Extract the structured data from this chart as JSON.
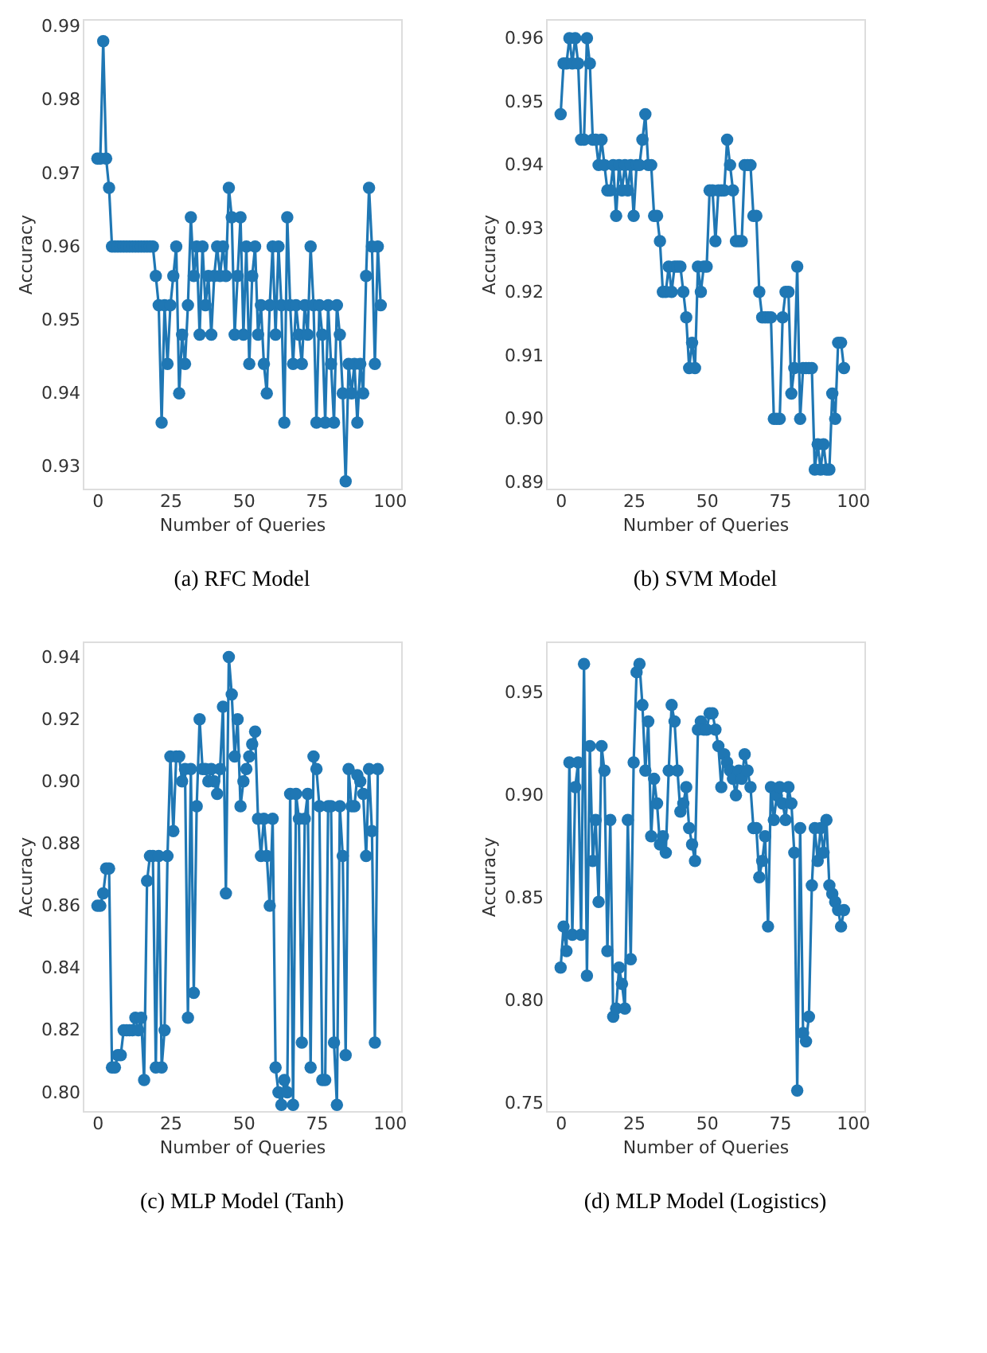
{
  "chart_data": [
    {
      "type": "line",
      "title": "(a) RFC Model",
      "xlabel": "Number of Queries",
      "ylabel": "Accuracy",
      "marker": "circle",
      "grid": false,
      "xlim": [
        -5,
        104
      ],
      "xticks": [
        0,
        25,
        50,
        75,
        100
      ],
      "ylim": [
        0.927,
        0.991
      ],
      "yticks": [
        {
          "value": 0.93,
          "label": "0.93"
        },
        {
          "value": 0.94,
          "label": "0.94"
        },
        {
          "value": 0.95,
          "label": "0.95"
        },
        {
          "value": 0.96,
          "label": "0.96"
        },
        {
          "value": 0.97,
          "label": "0.97"
        },
        {
          "value": 0.98,
          "label": "0.98"
        },
        {
          "value": 0.99,
          "label": "0.99"
        }
      ],
      "series": [
        {
          "color": "#1f77b4",
          "x": [
            0,
            1,
            2,
            3,
            4,
            5,
            6,
            7,
            8,
            9,
            10,
            11,
            12,
            13,
            14,
            15,
            16,
            17,
            18,
            19,
            20,
            21,
            22,
            23,
            24,
            25,
            26,
            27,
            28,
            29,
            30,
            31,
            32,
            33,
            34,
            35,
            36,
            37,
            38,
            39,
            40,
            41,
            42,
            43,
            44,
            45,
            46,
            47,
            48,
            49,
            50,
            51,
            52,
            53,
            54,
            55,
            56,
            57,
            58,
            59,
            60,
            61,
            62,
            63,
            64,
            65,
            66,
            67,
            68,
            69,
            70,
            71,
            72,
            73,
            74,
            75,
            76,
            77,
            78,
            79,
            80,
            81,
            82,
            83,
            84,
            85,
            86,
            87,
            88,
            89,
            90,
            91,
            92,
            93,
            94,
            95,
            96,
            97
          ],
          "values": [
            0.972,
            0.972,
            0.988,
            0.972,
            0.968,
            0.96,
            0.96,
            0.96,
            0.96,
            0.96,
            0.96,
            0.96,
            0.96,
            0.96,
            0.96,
            0.96,
            0.96,
            0.96,
            0.96,
            0.96,
            0.956,
            0.952,
            0.936,
            0.952,
            0.944,
            0.952,
            0.956,
            0.96,
            0.94,
            0.948,
            0.944,
            0.952,
            0.964,
            0.956,
            0.96,
            0.948,
            0.96,
            0.952,
            0.956,
            0.948,
            0.956,
            0.96,
            0.956,
            0.96,
            0.956,
            0.968,
            0.964,
            0.948,
            0.956,
            0.964,
            0.948,
            0.96,
            0.944,
            0.956,
            0.96,
            0.948,
            0.952,
            0.944,
            0.94,
            0.952,
            0.96,
            0.948,
            0.96,
            0.952,
            0.936,
            0.964,
            0.952,
            0.944,
            0.952,
            0.948,
            0.944,
            0.952,
            0.948,
            0.96,
            0.952,
            0.936,
            0.952,
            0.948,
            0.936,
            0.952,
            0.944,
            0.936,
            0.952,
            0.948,
            0.94,
            0.928,
            0.944,
            0.94,
            0.944,
            0.936,
            0.944,
            0.94,
            0.956,
            0.968,
            0.96,
            0.944,
            0.96,
            0.952
          ]
        }
      ]
    },
    {
      "type": "line",
      "title": "(b) SVM Model",
      "xlabel": "Number of Queries",
      "ylabel": "Accuracy",
      "marker": "circle",
      "grid": false,
      "xlim": [
        -5,
        104
      ],
      "xticks": [
        0,
        25,
        50,
        75,
        100
      ],
      "ylim": [
        0.889,
        0.963
      ],
      "yticks": [
        {
          "value": 0.89,
          "label": "0.89"
        },
        {
          "value": 0.9,
          "label": "0.90"
        },
        {
          "value": 0.91,
          "label": "0.91"
        },
        {
          "value": 0.92,
          "label": "0.92"
        },
        {
          "value": 0.93,
          "label": "0.93"
        },
        {
          "value": 0.94,
          "label": "0.94"
        },
        {
          "value": 0.95,
          "label": "0.95"
        },
        {
          "value": 0.96,
          "label": "0.96"
        }
      ],
      "series": [
        {
          "color": "#1f77b4",
          "x": [
            0,
            1,
            2,
            3,
            4,
            5,
            6,
            7,
            8,
            9,
            10,
            11,
            12,
            13,
            14,
            15,
            16,
            17,
            18,
            19,
            20,
            21,
            22,
            23,
            24,
            25,
            26,
            27,
            28,
            29,
            30,
            31,
            32,
            33,
            34,
            35,
            36,
            37,
            38,
            39,
            40,
            41,
            42,
            43,
            44,
            45,
            46,
            47,
            48,
            49,
            50,
            51,
            52,
            53,
            54,
            55,
            56,
            57,
            58,
            59,
            60,
            61,
            62,
            63,
            64,
            65,
            66,
            67,
            68,
            69,
            70,
            71,
            72,
            73,
            74,
            75,
            76,
            77,
            78,
            79,
            80,
            81,
            82,
            83,
            84,
            85,
            86,
            87,
            88,
            89,
            90,
            91,
            92,
            93,
            94,
            95,
            96,
            97
          ],
          "values": [
            0.948,
            0.956,
            0.956,
            0.96,
            0.956,
            0.96,
            0.956,
            0.944,
            0.944,
            0.96,
            0.956,
            0.944,
            0.944,
            0.94,
            0.944,
            0.94,
            0.936,
            0.936,
            0.94,
            0.932,
            0.94,
            0.936,
            0.94,
            0.936,
            0.94,
            0.932,
            0.94,
            0.94,
            0.944,
            0.948,
            0.94,
            0.94,
            0.932,
            0.932,
            0.928,
            0.92,
            0.92,
            0.924,
            0.92,
            0.924,
            0.924,
            0.924,
            0.92,
            0.916,
            0.908,
            0.912,
            0.908,
            0.924,
            0.92,
            0.924,
            0.924,
            0.936,
            0.936,
            0.928,
            0.936,
            0.936,
            0.936,
            0.944,
            0.94,
            0.936,
            0.928,
            0.928,
            0.928,
            0.94,
            0.94,
            0.94,
            0.932,
            0.932,
            0.92,
            0.916,
            0.916,
            0.916,
            0.916,
            0.9,
            0.9,
            0.9,
            0.916,
            0.92,
            0.92,
            0.904,
            0.908,
            0.924,
            0.9,
            0.908,
            0.908,
            0.908,
            0.908,
            0.892,
            0.896,
            0.892,
            0.896,
            0.892,
            0.892,
            0.904,
            0.9,
            0.912,
            0.912,
            0.908
          ]
        }
      ]
    },
    {
      "type": "line",
      "title": "(c) MLP Model (Tanh)",
      "xlabel": "Number of Queries",
      "ylabel": "Accuracy",
      "marker": "circle",
      "grid": false,
      "xlim": [
        -5,
        104
      ],
      "xticks": [
        0,
        25,
        50,
        75,
        100
      ],
      "ylim": [
        0.794,
        0.945
      ],
      "yticks": [
        {
          "value": 0.8,
          "label": "0.80"
        },
        {
          "value": 0.82,
          "label": "0.82"
        },
        {
          "value": 0.84,
          "label": "0.84"
        },
        {
          "value": 0.86,
          "label": "0.86"
        },
        {
          "value": 0.88,
          "label": "0.88"
        },
        {
          "value": 0.9,
          "label": "0.90"
        },
        {
          "value": 0.92,
          "label": "0.92"
        },
        {
          "value": 0.94,
          "label": "0.94"
        }
      ],
      "series": [
        {
          "color": "#1f77b4",
          "x": [
            0,
            1,
            2,
            3,
            4,
            5,
            6,
            7,
            8,
            9,
            10,
            11,
            12,
            13,
            14,
            15,
            16,
            17,
            18,
            19,
            20,
            21,
            22,
            23,
            24,
            25,
            26,
            27,
            28,
            29,
            30,
            31,
            32,
            33,
            34,
            35,
            36,
            37,
            38,
            39,
            40,
            41,
            42,
            43,
            44,
            45,
            46,
            47,
            48,
            49,
            50,
            51,
            52,
            53,
            54,
            55,
            56,
            57,
            58,
            59,
            60,
            61,
            62,
            63,
            64,
            65,
            66,
            67,
            68,
            69,
            70,
            71,
            72,
            73,
            74,
            75,
            76,
            77,
            78,
            79,
            80,
            81,
            82,
            83,
            84,
            85,
            86,
            87,
            88,
            89,
            90,
            91,
            92,
            93,
            94,
            95,
            96
          ],
          "values": [
            0.86,
            0.86,
            0.864,
            0.872,
            0.872,
            0.808,
            0.808,
            0.812,
            0.812,
            0.82,
            0.82,
            0.82,
            0.82,
            0.824,
            0.82,
            0.824,
            0.804,
            0.868,
            0.876,
            0.876,
            0.808,
            0.876,
            0.808,
            0.82,
            0.876,
            0.908,
            0.884,
            0.908,
            0.908,
            0.9,
            0.904,
            0.824,
            0.904,
            0.832,
            0.892,
            0.92,
            0.904,
            0.904,
            0.9,
            0.904,
            0.9,
            0.896,
            0.904,
            0.924,
            0.864,
            0.94,
            0.928,
            0.908,
            0.92,
            0.892,
            0.9,
            0.904,
            0.908,
            0.912,
            0.916,
            0.888,
            0.876,
            0.888,
            0.876,
            0.86,
            0.888,
            0.808,
            0.8,
            0.796,
            0.804,
            0.8,
            0.896,
            0.796,
            0.896,
            0.888,
            0.816,
            0.888,
            0.896,
            0.808,
            0.908,
            0.904,
            0.892,
            0.804,
            0.804,
            0.892,
            0.892,
            0.816,
            0.796,
            0.892,
            0.876,
            0.812,
            0.904,
            0.892,
            0.892,
            0.902,
            0.9,
            0.896,
            0.876,
            0.904,
            0.884,
            0.816,
            0.904
          ]
        }
      ]
    },
    {
      "type": "line",
      "title": "(d) MLP Model (Logistics)",
      "xlabel": "Number of Queries",
      "ylabel": "Accuracy",
      "marker": "circle",
      "grid": false,
      "xlim": [
        -5,
        104
      ],
      "xticks": [
        0,
        25,
        50,
        75,
        100
      ],
      "ylim": [
        0.746,
        0.975
      ],
      "yticks": [
        {
          "value": 0.75,
          "label": "0.75"
        },
        {
          "value": 0.8,
          "label": "0.80"
        },
        {
          "value": 0.85,
          "label": "0.85"
        },
        {
          "value": 0.9,
          "label": "0.90"
        },
        {
          "value": 0.95,
          "label": "0.95"
        }
      ],
      "series": [
        {
          "color": "#1f77b4",
          "x": [
            0,
            1,
            2,
            3,
            4,
            5,
            6,
            7,
            8,
            9,
            10,
            11,
            12,
            13,
            14,
            15,
            16,
            17,
            18,
            19,
            20,
            21,
            22,
            23,
            24,
            25,
            26,
            27,
            28,
            29,
            30,
            31,
            32,
            33,
            34,
            35,
            36,
            37,
            38,
            39,
            40,
            41,
            42,
            43,
            44,
            45,
            46,
            47,
            48,
            49,
            50,
            51,
            52,
            53,
            54,
            55,
            56,
            57,
            58,
            59,
            60,
            61,
            62,
            63,
            64,
            65,
            66,
            67,
            68,
            69,
            70,
            71,
            72,
            73,
            74,
            75,
            76,
            77,
            78,
            79,
            80,
            81,
            82,
            83,
            84,
            85,
            86,
            87,
            88,
            89,
            90,
            91,
            92,
            93,
            94,
            95,
            96,
            97
          ],
          "values": [
            0.816,
            0.836,
            0.824,
            0.916,
            0.832,
            0.904,
            0.916,
            0.832,
            0.964,
            0.812,
            0.924,
            0.868,
            0.888,
            0.848,
            0.924,
            0.912,
            0.824,
            0.888,
            0.792,
            0.796,
            0.816,
            0.808,
            0.796,
            0.888,
            0.82,
            0.916,
            0.96,
            0.964,
            0.944,
            0.912,
            0.936,
            0.88,
            0.908,
            0.896,
            0.876,
            0.88,
            0.872,
            0.912,
            0.944,
            0.936,
            0.912,
            0.892,
            0.896,
            0.904,
            0.884,
            0.876,
            0.868,
            0.932,
            0.936,
            0.932,
            0.932,
            0.94,
            0.94,
            0.932,
            0.924,
            0.904,
            0.92,
            0.916,
            0.912,
            0.908,
            0.9,
            0.912,
            0.908,
            0.92,
            0.912,
            0.904,
            0.884,
            0.884,
            0.86,
            0.868,
            0.88,
            0.836,
            0.904,
            0.888,
            0.9,
            0.904,
            0.896,
            0.888,
            0.904,
            0.896,
            0.872,
            0.756,
            0.884,
            0.784,
            0.78,
            0.792,
            0.856,
            0.884,
            0.868,
            0.884,
            0.872,
            0.888,
            0.856,
            0.852,
            0.848,
            0.844,
            0.836,
            0.844
          ]
        }
      ]
    }
  ]
}
